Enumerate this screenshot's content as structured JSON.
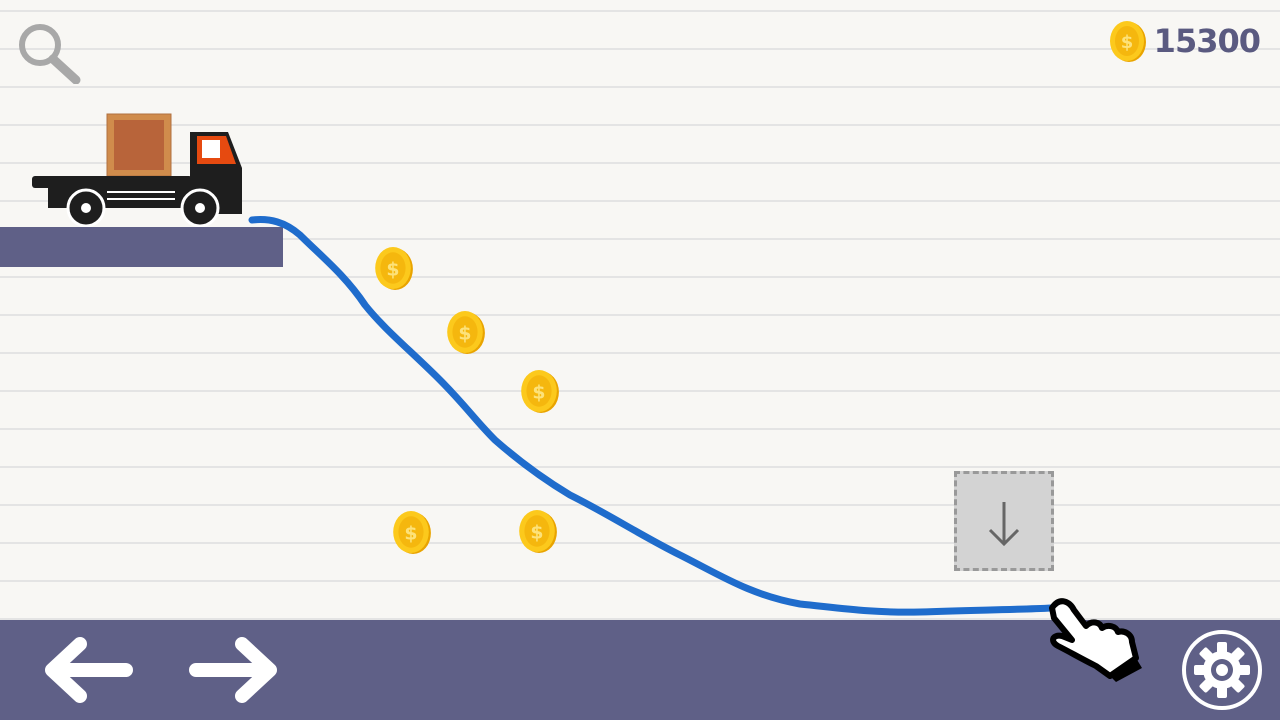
{
  "hud": {
    "coins": "15300",
    "coin_icon": "coin-icon",
    "zoom_icon": "magnifier-icon"
  },
  "controls": {
    "left": "arrow-left-icon",
    "right": "arrow-right-icon",
    "settings": "gear-icon"
  },
  "colors": {
    "platform": "#5f6087",
    "line": "#1f6ccc",
    "coin": "#f7c21a",
    "truck_cab": "#e64a10"
  }
}
